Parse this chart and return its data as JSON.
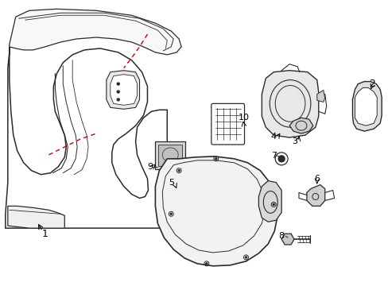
{
  "background_color": "#ffffff",
  "line_color": "#2a2a2a",
  "red_color": "#cc0000",
  "figsize": [
    4.89,
    3.6
  ],
  "dpi": 100,
  "xlim": [
    0,
    489
  ],
  "ylim": [
    0,
    360
  ]
}
